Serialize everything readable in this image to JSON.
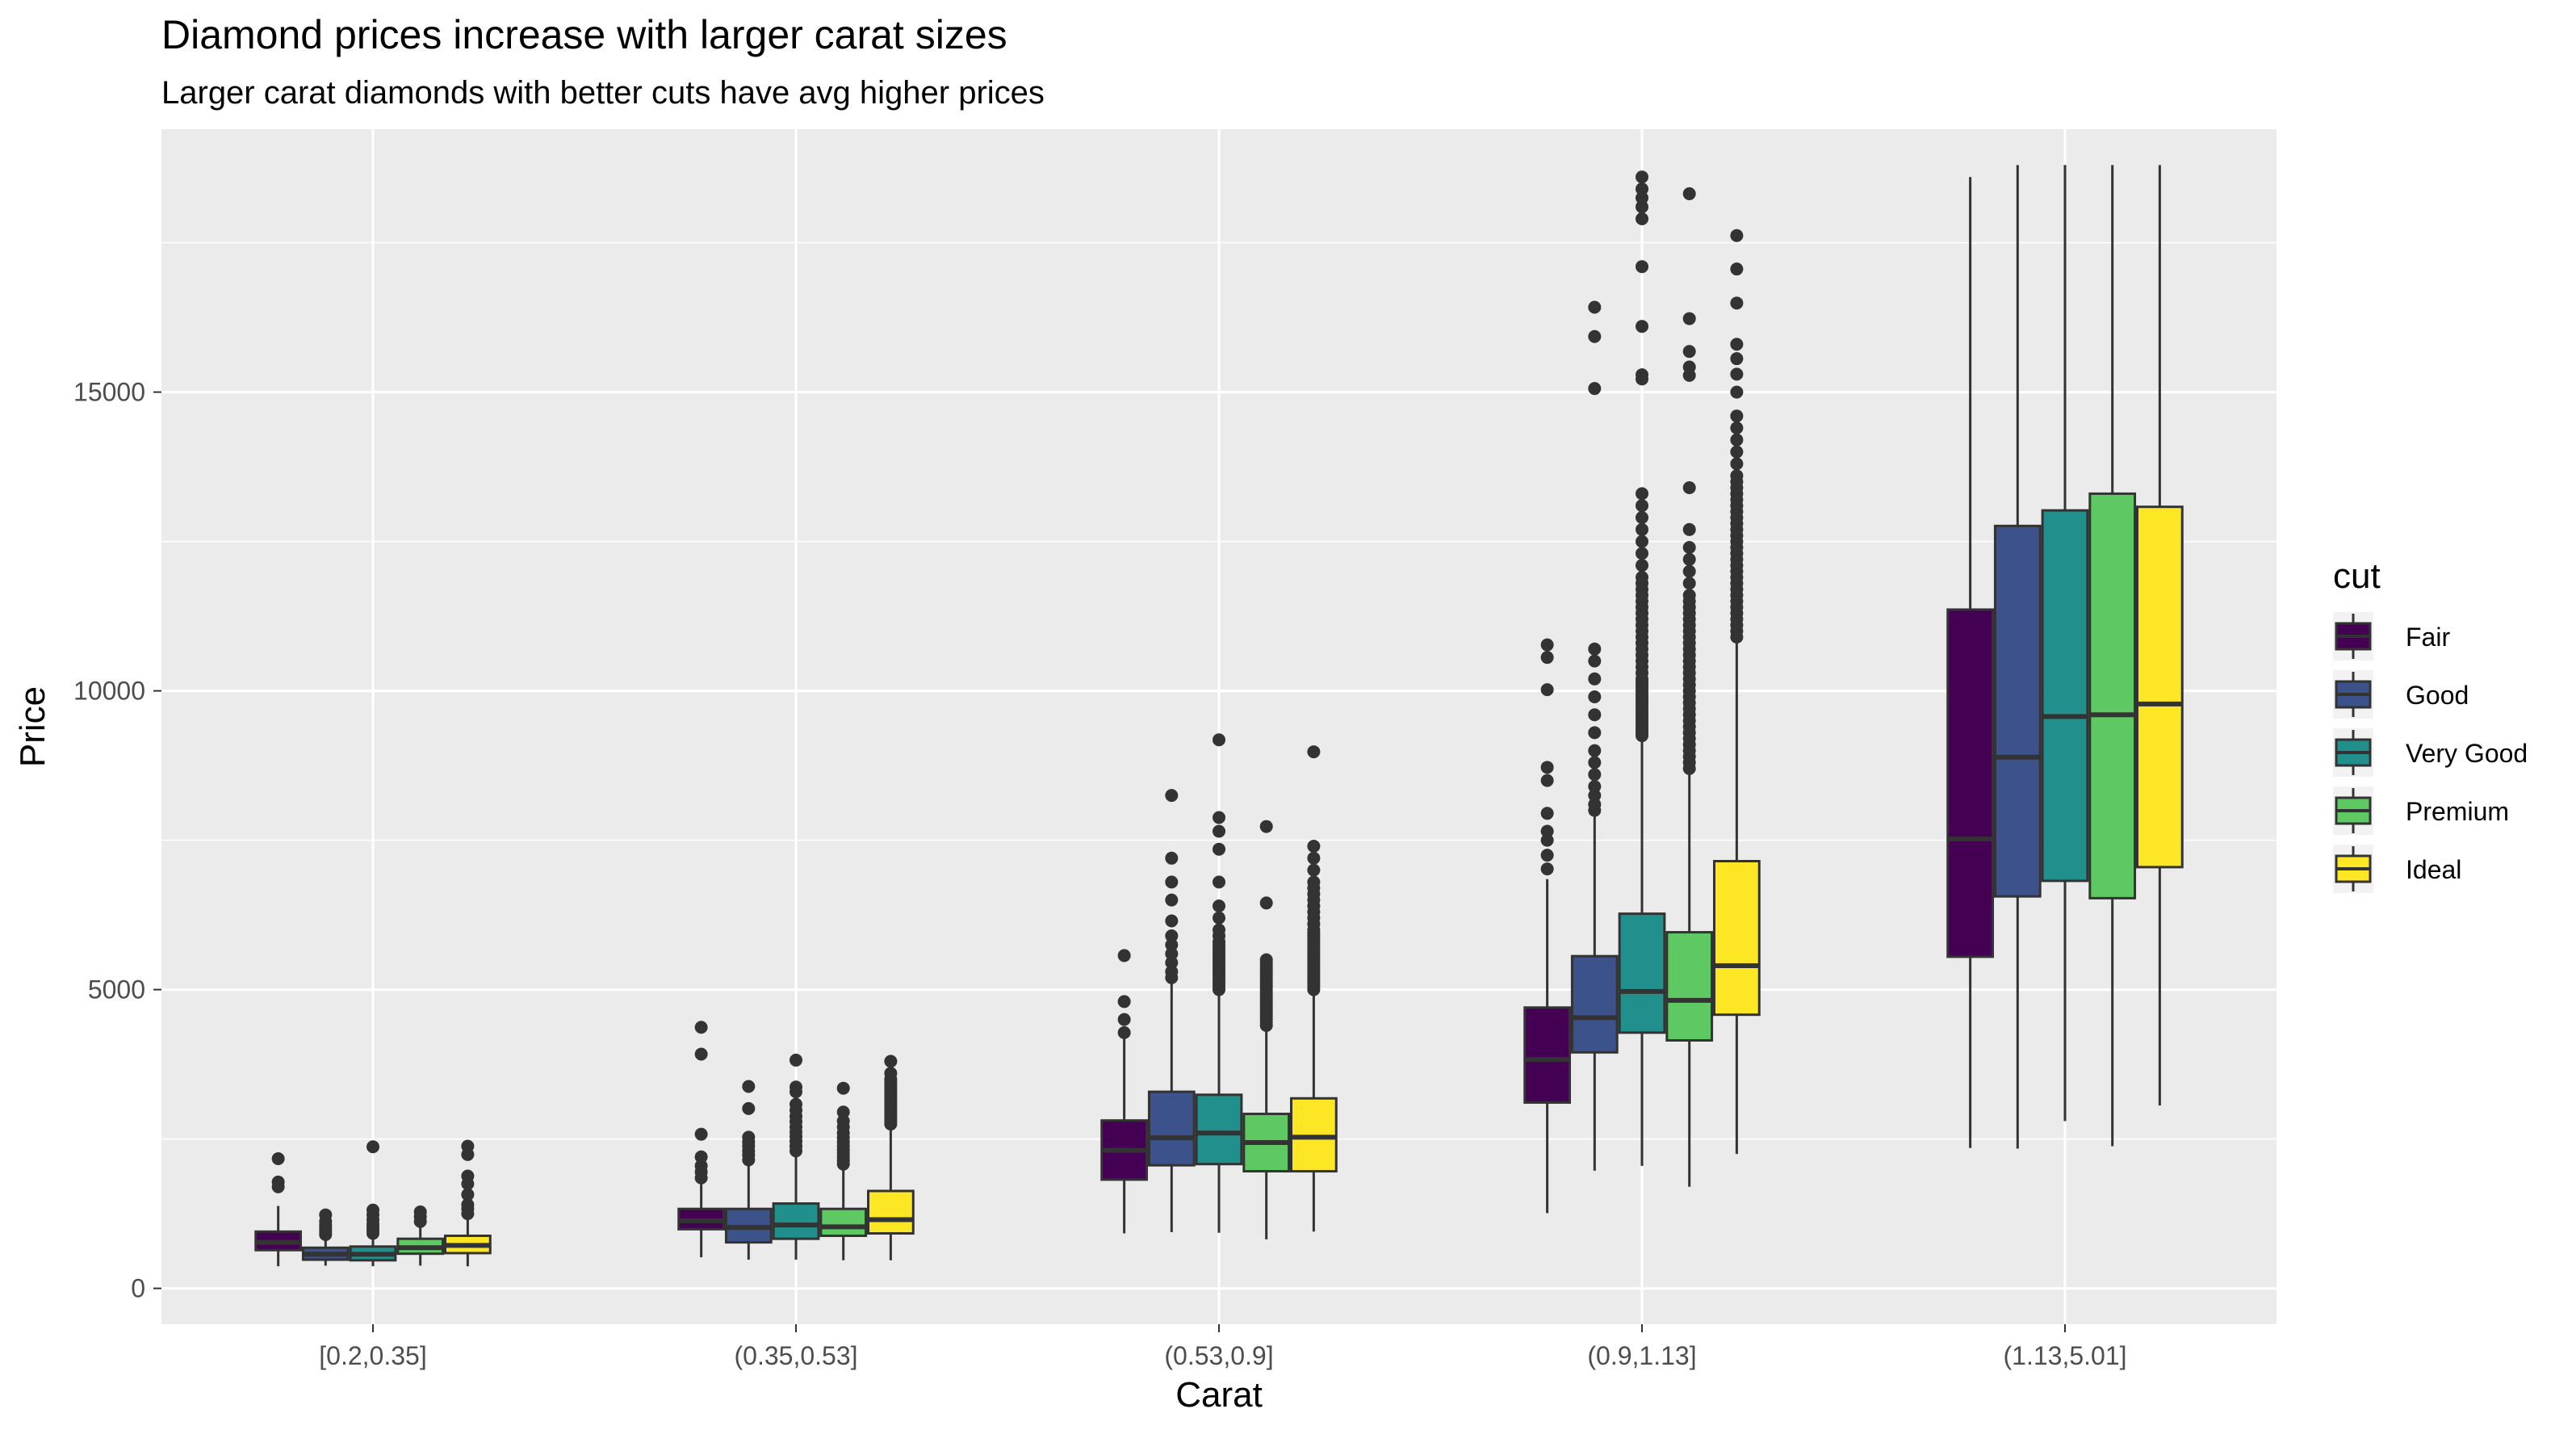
{
  "chart_data": {
    "type": "boxplot",
    "title": "Diamond prices increase with larger carat sizes",
    "subtitle": "Larger carat diamonds with better cuts have avg higher prices",
    "xlabel": "Carat",
    "ylabel": "Price",
    "ylim": [
      -600,
      19400
    ],
    "yticks": [
      0,
      5000,
      10000,
      15000
    ],
    "grid": true,
    "legend": {
      "title": "cut",
      "position": "right"
    },
    "categories": [
      "[0.2,0.35]",
      "(0.35,0.53]",
      "(0.53,0.9]",
      "(0.9,1.13]",
      "(1.13,5.01]"
    ],
    "series": [
      {
        "name": "Fair",
        "color": "#440154",
        "boxes": [
          {
            "min": 370,
            "q1": 640,
            "median": 770,
            "q3": 950,
            "max": 1380,
            "outliers": [
              1700,
              1780,
              2170
            ]
          },
          {
            "min": 520,
            "q1": 990,
            "median": 1130,
            "q3": 1330,
            "max": 1780,
            "outliers": [
              1850,
              1950,
              2050,
              2200,
              2580,
              3920,
              4370
            ]
          },
          {
            "min": 920,
            "q1": 1820,
            "median": 2310,
            "q3": 2810,
            "max": 4200,
            "outliers": [
              4280,
              4500,
              4800,
              5570
            ]
          },
          {
            "min": 1260,
            "q1": 3110,
            "median": 3830,
            "q3": 4700,
            "max": 6850,
            "outliers": [
              7020,
              7250,
              7500,
              7650,
              7950,
              8500,
              8720,
              10020,
              10560,
              10770
            ]
          },
          {
            "min": 2350,
            "q1": 5550,
            "median": 7520,
            "q3": 11360,
            "max": 18600,
            "outliers": []
          }
        ]
      },
      {
        "name": "Good",
        "color": "#3b528b",
        "boxes": [
          {
            "min": 380,
            "q1": 480,
            "median": 570,
            "q3": 680,
            "max": 850,
            "outliers": [
              900,
              950,
              1000,
              1050,
              1120,
              1230
            ]
          },
          {
            "min": 480,
            "q1": 770,
            "median": 1020,
            "q3": 1330,
            "max": 2100,
            "outliers": [
              2150,
              2230,
              2300,
              2380,
              2450,
              2530,
              3010,
              3380
            ]
          },
          {
            "min": 940,
            "q1": 2060,
            "median": 2520,
            "q3": 3290,
            "max": 5100,
            "outliers": [
              5200,
              5300,
              5450,
              5600,
              5750,
              5900,
              6150,
              6500,
              6800,
              7200,
              8250
            ]
          },
          {
            "min": 1970,
            "q1": 3950,
            "median": 4530,
            "q3": 5560,
            "max": 7900,
            "outliers": [
              8000,
              8100,
              8250,
              8400,
              8600,
              8800,
              9000,
              9300,
              9600,
              9900,
              10200,
              10500,
              10700,
              15060,
              15930,
              16420
            ]
          },
          {
            "min": 2340,
            "q1": 6560,
            "median": 8890,
            "q3": 12760,
            "max": 18800,
            "outliers": []
          }
        ]
      },
      {
        "name": "Very Good",
        "color": "#21908c",
        "boxes": [
          {
            "min": 370,
            "q1": 470,
            "median": 570,
            "q3": 700,
            "max": 870,
            "outliers": [
              920,
              980,
              1030,
              1080,
              1150,
              1230,
              1310,
              2370
            ]
          },
          {
            "min": 480,
            "q1": 830,
            "median": 1060,
            "q3": 1420,
            "max": 2260,
            "outliers": [
              2300,
              2380,
              2460,
              2540,
              2620,
              2700,
              2790,
              2880,
              2980,
              3080,
              3290,
              3370,
              3820
            ]
          },
          {
            "min": 930,
            "q1": 2080,
            "median": 2600,
            "q3": 3240,
            "max": 4950,
            "outliers": [
              5000,
              5050,
              5100,
              5150,
              5200,
              5250,
              5300,
              5350,
              5400,
              5450,
              5500,
              5550,
              5600,
              5650,
              5700,
              5750,
              5800,
              5900,
              6000,
              6200,
              6400,
              6800,
              7350,
              7650,
              7880,
              9180
            ]
          },
          {
            "min": 2050,
            "q1": 4280,
            "median": 4970,
            "q3": 6270,
            "max": 9200,
            "outliers": [
              9250,
              9300,
              9350,
              9400,
              9450,
              9500,
              9550,
              9600,
              9650,
              9700,
              9750,
              9800,
              9850,
              9900,
              9950,
              10000,
              10050,
              10100,
              10150,
              10200,
              10300,
              10400,
              10500,
              10600,
              10700,
              10800,
              10900,
              11000,
              11100,
              11200,
              11300,
              11400,
              11500,
              11600,
              11700,
              11800,
              11900,
              12100,
              12300,
              12500,
              12700,
              12900,
              13100,
              13300,
              15220,
              15290,
              16100,
              17100,
              17900,
              18100,
              18250,
              18400,
              18600
            ]
          },
          {
            "min": 2800,
            "q1": 6820,
            "median": 9570,
            "q3": 13020,
            "max": 18800,
            "outliers": []
          }
        ]
      },
      {
        "name": "Premium",
        "color": "#5ec962",
        "boxes": [
          {
            "min": 380,
            "q1": 580,
            "median": 680,
            "q3": 830,
            "max": 1080,
            "outliers": [
              1120,
              1200,
              1280
            ]
          },
          {
            "min": 470,
            "q1": 880,
            "median": 1030,
            "q3": 1330,
            "max": 2030,
            "outliers": [
              2080,
              2140,
              2200,
              2260,
              2320,
              2380,
              2450,
              2520,
              2600,
              2700,
              2800,
              2950,
              3350
            ]
          },
          {
            "min": 820,
            "q1": 1960,
            "median": 2440,
            "q3": 2920,
            "max": 4350,
            "outliers": [
              4400,
              4450,
              4500,
              4550,
              4600,
              4650,
              4700,
              4750,
              4800,
              4850,
              4900,
              4950,
              5000,
              5050,
              5100,
              5150,
              5200,
              5250,
              5300,
              5350,
              5400,
              5450,
              5500,
              6450,
              7730
            ]
          },
          {
            "min": 1700,
            "q1": 4150,
            "median": 4820,
            "q3": 5960,
            "max": 8650,
            "outliers": [
              8700,
              8800,
              8900,
              9000,
              9100,
              9200,
              9300,
              9400,
              9500,
              9600,
              9700,
              9800,
              9900,
              10000,
              10100,
              10200,
              10300,
              10400,
              10500,
              10600,
              10700,
              10800,
              10900,
              11000,
              11100,
              11200,
              11300,
              11400,
              11500,
              11600,
              11800,
              12000,
              12200,
              12400,
              12700,
              13400,
              15280,
              15420,
              15680,
              16230,
              18320
            ]
          },
          {
            "min": 2380,
            "q1": 6530,
            "median": 9600,
            "q3": 13300,
            "max": 18800,
            "outliers": []
          }
        ]
      },
      {
        "name": "Ideal",
        "color": "#fde725",
        "boxes": [
          {
            "min": 370,
            "q1": 590,
            "median": 720,
            "q3": 880,
            "max": 1160,
            "outliers": [
              1250,
              1330,
              1400,
              1570,
              1750,
              1880,
              2240,
              2380
            ]
          },
          {
            "min": 470,
            "q1": 920,
            "median": 1150,
            "q3": 1630,
            "max": 2710,
            "outliers": [
              2750,
              2800,
              2850,
              2900,
              2950,
              3000,
              3050,
              3100,
              3150,
              3200,
              3250,
              3300,
              3350,
              3400,
              3450,
              3500,
              3600,
              3800
            ]
          },
          {
            "min": 950,
            "q1": 1960,
            "median": 2530,
            "q3": 3180,
            "max": 4960,
            "outliers": [
              5000,
              5050,
              5100,
              5150,
              5200,
              5250,
              5300,
              5350,
              5400,
              5450,
              5500,
              5550,
              5600,
              5650,
              5700,
              5750,
              5800,
              5850,
              5900,
              5950,
              6000,
              6100,
              6200,
              6300,
              6400,
              6500,
              6600,
              6700,
              6800,
              7000,
              7200,
              7400,
              8980
            ]
          },
          {
            "min": 2250,
            "q1": 4580,
            "median": 5400,
            "q3": 7150,
            "max": 10850,
            "outliers": [
              10900,
              11000,
              11100,
              11200,
              11300,
              11400,
              11500,
              11600,
              11700,
              11800,
              11900,
              12000,
              12100,
              12200,
              12300,
              12400,
              12500,
              12600,
              12700,
              12800,
              12900,
              13000,
              13100,
              13200,
              13300,
              13400,
              13500,
              13600,
              13800,
              14000,
              14200,
              14400,
              14600,
              15000,
              15300,
              15560,
              15800,
              16490,
              17060,
              17620
            ]
          },
          {
            "min": 3060,
            "q1": 7050,
            "median": 9780,
            "q3": 13080,
            "max": 18800,
            "outliers": []
          }
        ]
      }
    ]
  }
}
